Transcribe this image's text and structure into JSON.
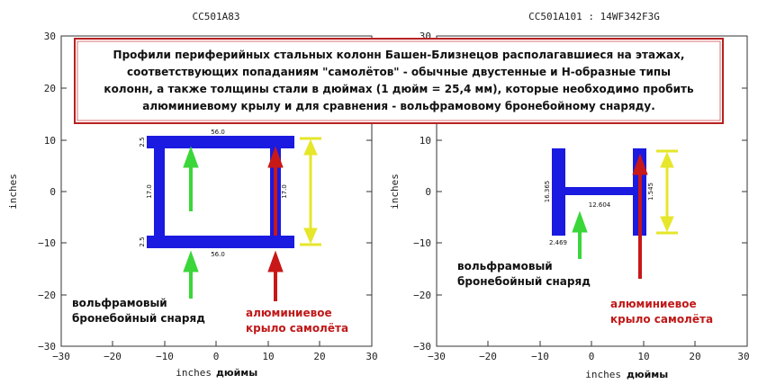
{
  "banner": {
    "lines": [
      "Профили периферийных стальных колонн Башен-Близнецов располагавшиеся на этажах,",
      "соответствующих попаданиям \"самолётов\" - обычные двустенные и Н-образные типы",
      "колонн, а также толщины стали в дюймах (1 дюйм = 25,4 мм), которые необходимо пробить",
      "алюминиевому крылу и для сравнения - вольфрамовому бронебойному снаряду."
    ]
  },
  "left_plot": {
    "title": "CC501A83",
    "ylabel": "inches",
    "xlabel": "inches",
    "xlabel_ru": "дюймы",
    "x_ticks": [
      "−30",
      "−20",
      "−10",
      "0",
      "10",
      "20",
      "30"
    ],
    "y_ticks": [
      "30",
      "20",
      "10",
      "0",
      "−10",
      "−20",
      "−30"
    ],
    "dims": {
      "top_width": "56.0",
      "bottom_width": "56.0",
      "top_flange": "2.5",
      "bottom_flange": "2.5",
      "left_web": "17.0",
      "right_web": "17.0"
    },
    "label_tungsten": [
      "вольфрамовый",
      "бронебойный снаряд"
    ],
    "label_wing": [
      "алюминиевое",
      "крыло самолёта"
    ]
  },
  "right_plot": {
    "title": "CC501A101 : 14WF342F3G",
    "ylabel": "inches",
    "xlabel": "inches",
    "xlabel_ru": "дюймы",
    "x_ticks": [
      "−30",
      "−20",
      "−10",
      "0",
      "10",
      "20",
      "30"
    ],
    "y_ticks": [
      "30",
      "20",
      "10",
      "0",
      "−10",
      "−20",
      "−30"
    ],
    "dims": {
      "left_flange_height": "16.365",
      "web": "12.604",
      "right_flange_height": "1.545",
      "flange_thickness": "2.469"
    },
    "label_tungsten": [
      "вольфрамовый",
      "бронебойный снаряд"
    ],
    "label_wing": [
      "алюминиевое",
      "крыло самолёта"
    ]
  },
  "colors": {
    "steel": "#1a1ae0",
    "tungsten_arrow": "#3ad63a",
    "wing_arrow": "#c81818",
    "dimension": "#e6e62a",
    "banner_border": "#b82020"
  }
}
